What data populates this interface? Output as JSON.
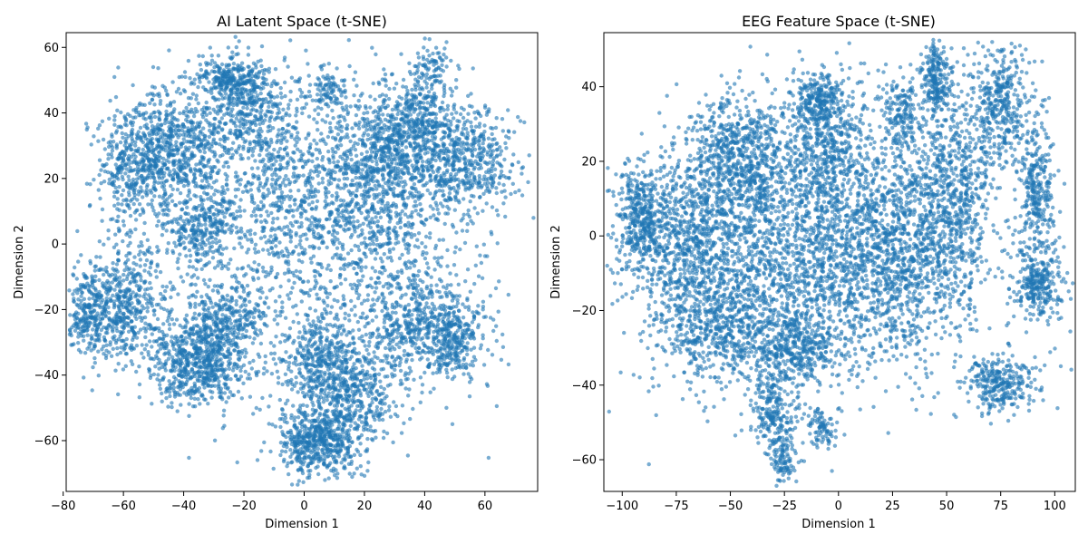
{
  "chart_data": [
    {
      "type": "scatter",
      "title": "AI Latent Space (t-SNE)",
      "xlabel": "Dimension 1",
      "ylabel": "Dimension 2",
      "xlim": [
        -79,
        77.5
      ],
      "ylim": [
        -75.5,
        64.5
      ],
      "xticks": [
        -80,
        -60,
        -40,
        -20,
        0,
        20,
        40,
        60
      ],
      "yticks": [
        -60,
        -40,
        -20,
        0,
        20,
        40,
        60
      ],
      "xtick_labels": [
        "−80",
        "−60",
        "−40",
        "−20",
        "0",
        "20",
        "40",
        "60"
      ],
      "ytick_labels": [
        "−60",
        "−40",
        "−20",
        "0",
        "20",
        "40",
        "60"
      ],
      "grid": false,
      "color": "#1f77b4",
      "point_count": 9000,
      "clusters": [
        {
          "x": 2,
          "y": 0,
          "sx": 28,
          "sy": 24,
          "w": 0.16
        },
        {
          "x": 28,
          "y": 28,
          "sx": 11,
          "sy": 8,
          "w": 0.07
        },
        {
          "x": 55,
          "y": 25,
          "sx": 8,
          "sy": 8,
          "w": 0.05
        },
        {
          "x": 38,
          "y": 40,
          "sx": 8,
          "sy": 6,
          "w": 0.03
        },
        {
          "x": -45,
          "y": 28,
          "sx": 9,
          "sy": 9,
          "w": 0.07
        },
        {
          "x": -58,
          "y": 22,
          "sx": 5,
          "sy": 9,
          "w": 0.03
        },
        {
          "x": -20,
          "y": 42,
          "sx": 9,
          "sy": 8,
          "w": 0.05
        },
        {
          "x": -25,
          "y": 50,
          "sx": 5,
          "sy": 3,
          "w": 0.02
        },
        {
          "x": 8,
          "y": 47,
          "sx": 3,
          "sy": 3,
          "w": 0.01
        },
        {
          "x": 42,
          "y": 54,
          "sx": 3,
          "sy": 3,
          "w": 0.01
        },
        {
          "x": -70,
          "y": -20,
          "sx": 5,
          "sy": 7,
          "w": 0.04
        },
        {
          "x": -58,
          "y": -18,
          "sx": 5,
          "sy": 9,
          "w": 0.04
        },
        {
          "x": -35,
          "y": -37,
          "sx": 8,
          "sy": 6,
          "w": 0.06
        },
        {
          "x": -28,
          "y": -25,
          "sx": 8,
          "sy": 6,
          "w": 0.04
        },
        {
          "x": -35,
          "y": 5,
          "sx": 6,
          "sy": 6,
          "w": 0.03
        },
        {
          "x": 5,
          "y": -60,
          "sx": 7,
          "sy": 5,
          "w": 0.06
        },
        {
          "x": 15,
          "y": -45,
          "sx": 8,
          "sy": 8,
          "w": 0.05
        },
        {
          "x": 5,
          "y": -35,
          "sx": 6,
          "sy": 6,
          "w": 0.03
        },
        {
          "x": 40,
          "y": -25,
          "sx": 10,
          "sy": 9,
          "w": 0.06
        },
        {
          "x": 50,
          "y": -30,
          "sx": 4,
          "sy": 5,
          "w": 0.02
        },
        {
          "x": 25,
          "y": 10,
          "sx": 12,
          "sy": 10,
          "w": 0.04
        },
        {
          "x": -8,
          "y": 20,
          "sx": 10,
          "sy": 10,
          "w": 0.03
        }
      ]
    },
    {
      "type": "scatter",
      "title": "EEG Feature Space (t-SNE)",
      "xlabel": "Dimension 1",
      "ylabel": "Dimension 2",
      "xlim": [
        -108.5,
        109.5
      ],
      "ylim": [
        -68.5,
        54.5
      ],
      "xticks": [
        -100,
        -75,
        -50,
        -25,
        0,
        25,
        50,
        75,
        100
      ],
      "yticks": [
        -60,
        -40,
        -20,
        0,
        20,
        40
      ],
      "xtick_labels": [
        "−100",
        "−75",
        "−50",
        "−25",
        "0",
        "25",
        "50",
        "75",
        "100"
      ],
      "ytick_labels": [
        "−60",
        "−40",
        "−20",
        "0",
        "20",
        "40"
      ],
      "grid": false,
      "color": "#1f77b4",
      "point_count": 9000,
      "clusters": [
        {
          "x": -10,
          "y": -5,
          "sx": 38,
          "sy": 16,
          "w": 0.28
        },
        {
          "x": -70,
          "y": 0,
          "sx": 12,
          "sy": 12,
          "w": 0.07
        },
        {
          "x": -92,
          "y": 5,
          "sx": 5,
          "sy": 7,
          "w": 0.04
        },
        {
          "x": -45,
          "y": 22,
          "sx": 12,
          "sy": 8,
          "w": 0.07
        },
        {
          "x": -5,
          "y": 25,
          "sx": 10,
          "sy": 10,
          "w": 0.05
        },
        {
          "x": -10,
          "y": 37,
          "sx": 5,
          "sy": 3,
          "w": 0.02
        },
        {
          "x": 30,
          "y": 0,
          "sx": 14,
          "sy": 14,
          "w": 0.07
        },
        {
          "x": 30,
          "y": 33,
          "sx": 5,
          "sy": 5,
          "w": 0.02
        },
        {
          "x": 45,
          "y": 42,
          "sx": 3,
          "sy": 5,
          "w": 0.02
        },
        {
          "x": 55,
          "y": 15,
          "sx": 8,
          "sy": 14,
          "w": 0.05
        },
        {
          "x": 75,
          "y": 35,
          "sx": 7,
          "sy": 8,
          "w": 0.04
        },
        {
          "x": 92,
          "y": 12,
          "sx": 4,
          "sy": 9,
          "w": 0.03
        },
        {
          "x": 92,
          "y": -13,
          "sx": 5,
          "sy": 5,
          "w": 0.03
        },
        {
          "x": 75,
          "y": -40,
          "sx": 8,
          "sy": 4,
          "w": 0.03
        },
        {
          "x": -30,
          "y": -48,
          "sx": 5,
          "sy": 6,
          "w": 0.02
        },
        {
          "x": -8,
          "y": -52,
          "sx": 4,
          "sy": 3,
          "w": 0.01
        },
        {
          "x": -25,
          "y": -60,
          "sx": 3,
          "sy": 3,
          "w": 0.01
        },
        {
          "x": -20,
          "y": -30,
          "sx": 10,
          "sy": 5,
          "w": 0.04
        },
        {
          "x": -55,
          "y": -25,
          "sx": 14,
          "sy": 8,
          "w": 0.05
        }
      ]
    }
  ]
}
